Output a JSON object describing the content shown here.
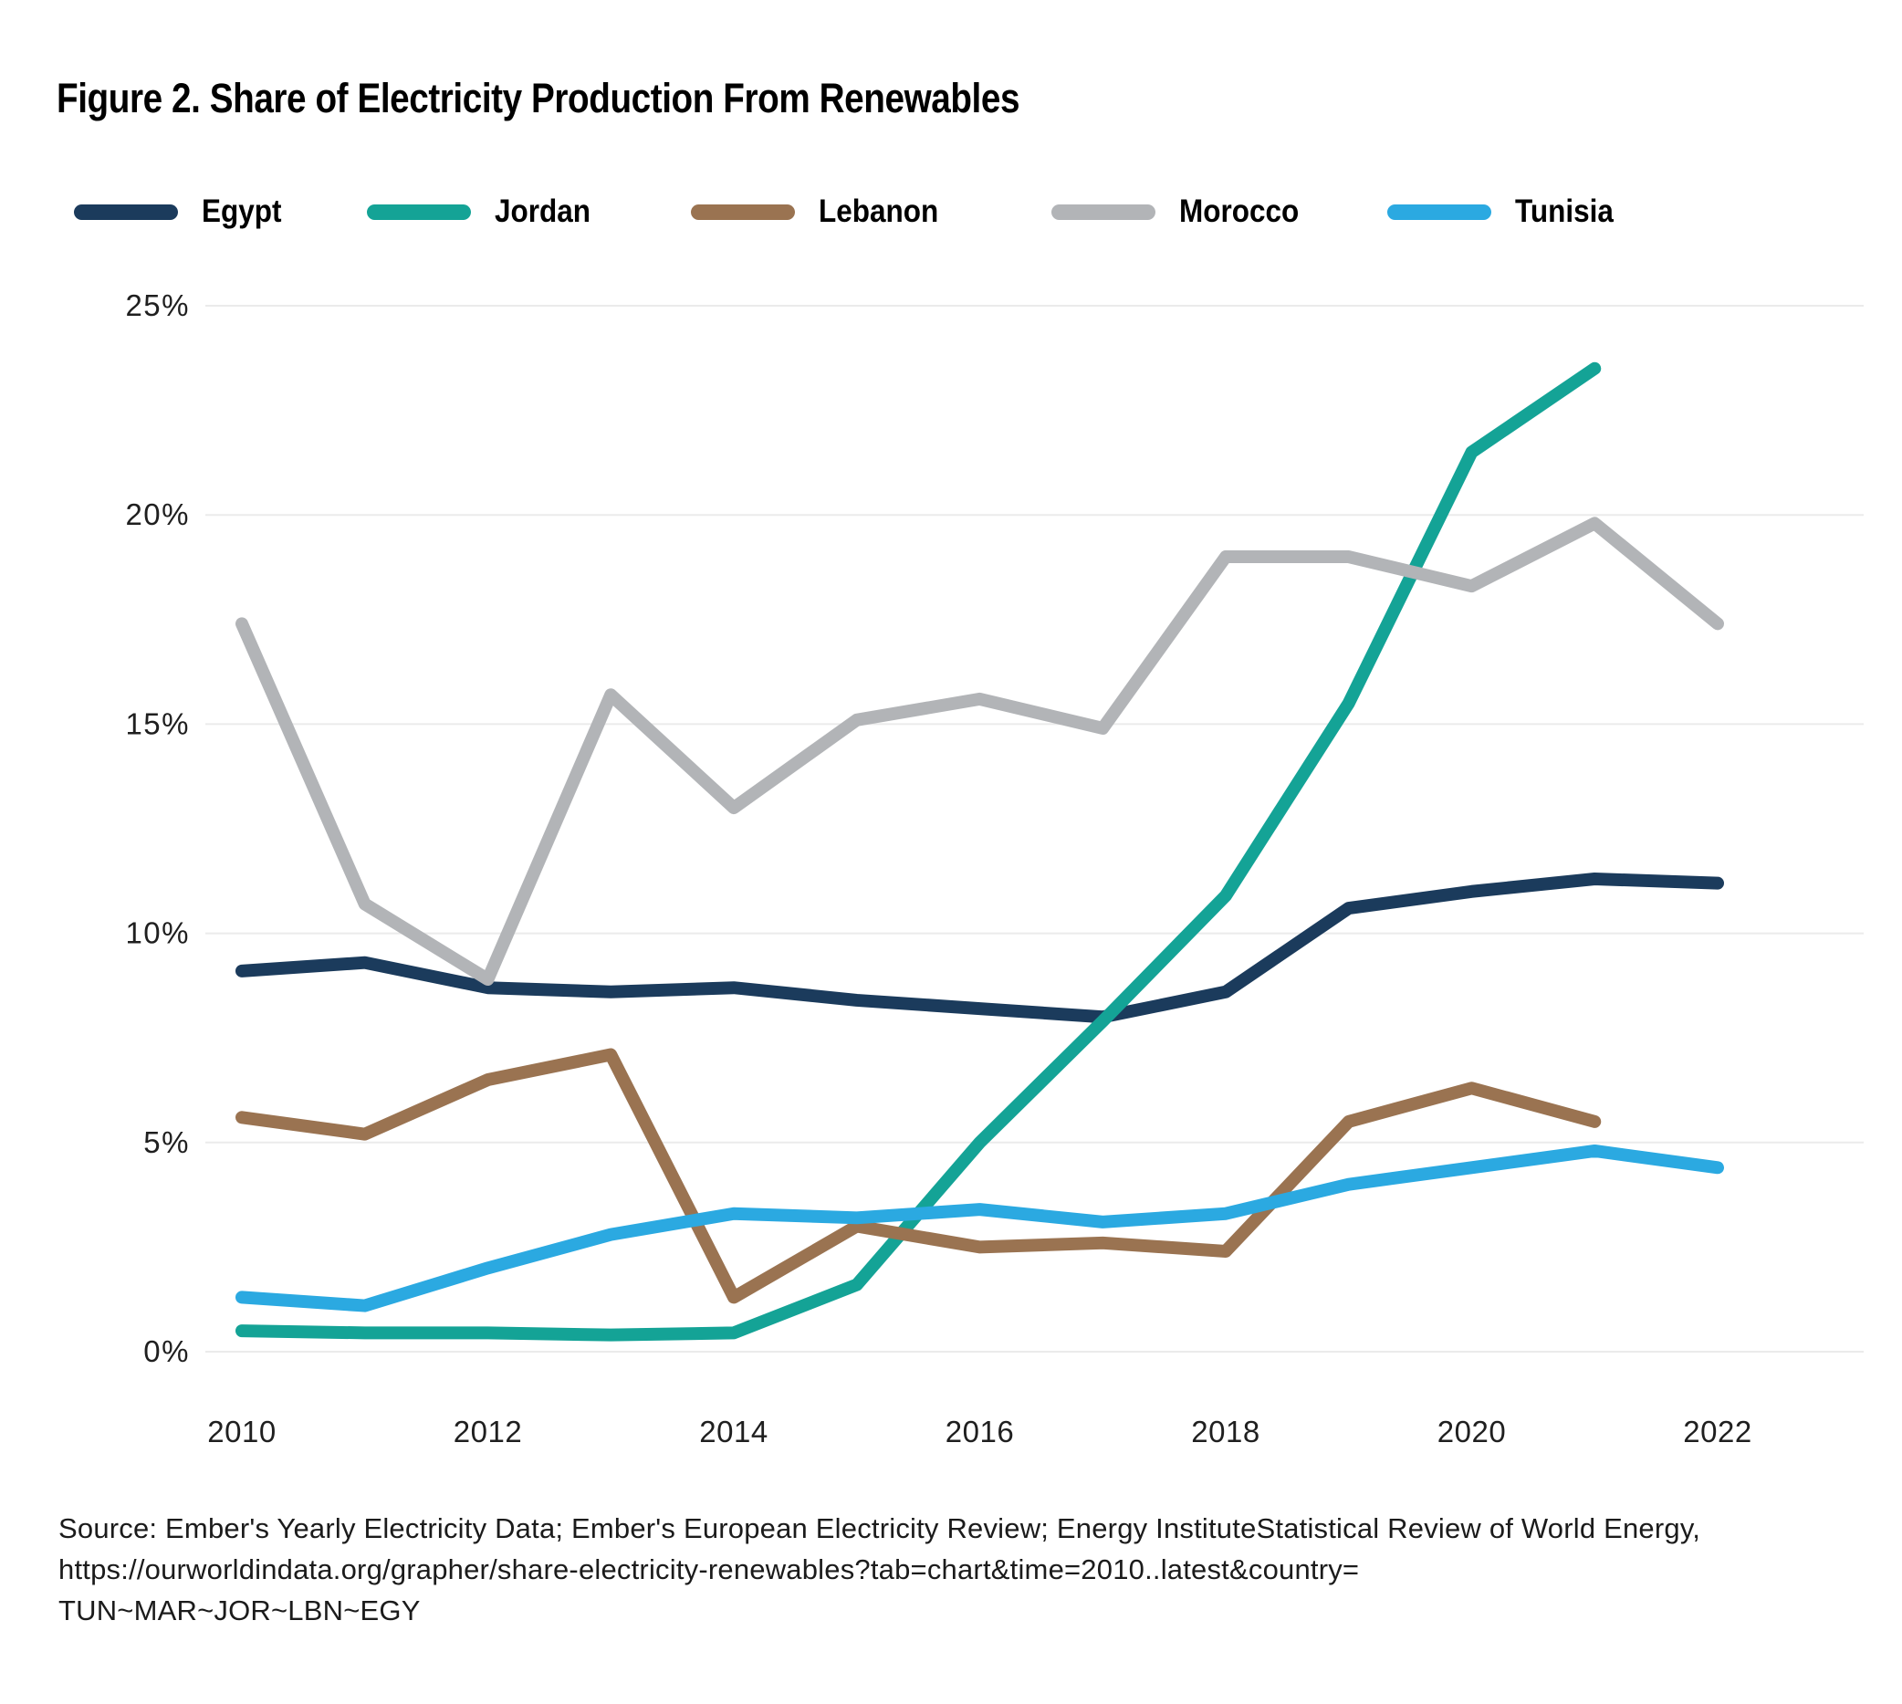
{
  "figure": {
    "title": "Figure 2. Share of Electricity Production From Renewables",
    "source_lines": [
      "Source: Ember's Yearly Electricity Data; Ember's European Electricity Review; Energy InstituteStatistical Review of World Energy,",
      "https://ourworldindata.org/grapher/share-electricity-renewables?tab=chart&time=2010..latest&country=",
      "TUN~MAR~JOR~LBN~EGY"
    ]
  },
  "chart_data": {
    "type": "line",
    "title": "Figure 2. Share of Electricity Production From Renewables",
    "xlabel": "",
    "ylabel": "",
    "x": [
      2010,
      2011,
      2012,
      2013,
      2014,
      2015,
      2016,
      2017,
      2018,
      2019,
      2020,
      2021,
      2022
    ],
    "x_tick_labels": [
      "2010",
      "2012",
      "2014",
      "2016",
      "2018",
      "2020",
      "2022"
    ],
    "y_ticks": [
      0,
      5,
      10,
      15,
      20,
      25
    ],
    "y_tick_suffix": "%",
    "ylim": [
      0,
      25
    ],
    "grid": "horizontal",
    "legend_position": "top",
    "grid_color": "#ebebeb",
    "tick_label_color": "#1f1f1f",
    "series": [
      {
        "name": "Egypt",
        "color": "#1B3B5C",
        "values": [
          9.1,
          9.3,
          8.7,
          8.6,
          8.7,
          8.4,
          8.2,
          8.0,
          8.6,
          10.6,
          11.0,
          11.3,
          11.2
        ]
      },
      {
        "name": "Jordan",
        "color": "#14A396",
        "values": [
          0.5,
          0.45,
          0.45,
          0.4,
          0.45,
          1.6,
          5.0,
          7.9,
          10.9,
          15.5,
          21.5,
          23.5,
          null
        ]
      },
      {
        "name": "Lebanon",
        "color": "#9A7351",
        "values": [
          5.6,
          5.2,
          6.5,
          7.1,
          1.3,
          3.0,
          2.5,
          2.6,
          2.4,
          5.5,
          6.3,
          5.5,
          null
        ]
      },
      {
        "name": "Morocco",
        "color": "#B2B4B7",
        "values": [
          17.4,
          10.7,
          8.9,
          15.7,
          13.0,
          15.1,
          15.6,
          14.9,
          19.0,
          19.0,
          18.3,
          19.8,
          17.4
        ]
      },
      {
        "name": "Tunisia",
        "color": "#2BA9E1",
        "values": [
          1.3,
          1.1,
          2.0,
          2.8,
          3.3,
          3.2,
          3.4,
          3.1,
          3.3,
          4.0,
          4.4,
          4.8,
          4.4
        ]
      }
    ]
  }
}
